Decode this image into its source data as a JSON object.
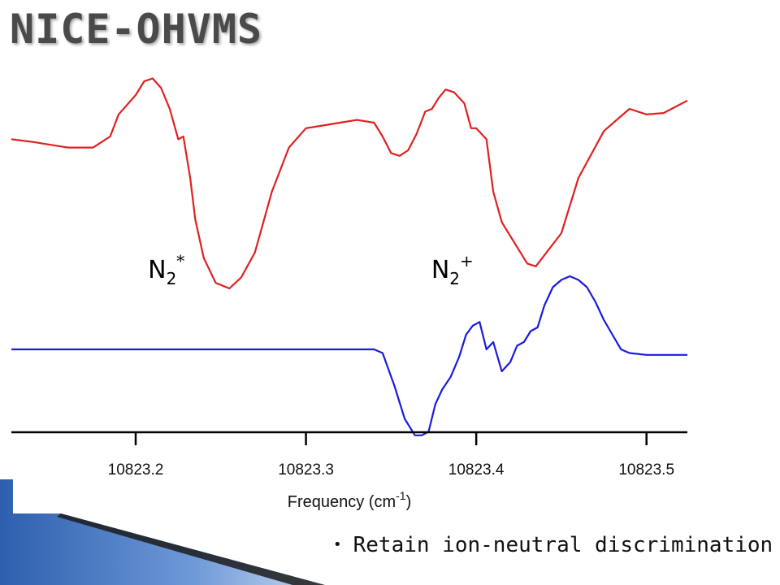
{
  "slide": {
    "title": "NICE-OHVMS",
    "bullets": [
      "Retain ion-neutral discrimination"
    ]
  },
  "colors": {
    "upper_trace": "#e02020",
    "lower_trace": "#1a1ae0",
    "accent_blue": "#3a72c8",
    "title_gray": "#4a4a4a"
  },
  "chart_data": {
    "type": "line",
    "xlabel": "Frequency (cm",
    "xlabel_superscript": "-1",
    "xlabel_suffix": ")",
    "ticks": [
      10823.2,
      10823.3,
      10823.4,
      10823.5
    ],
    "tick_labels": [
      "10823.2",
      "10823.3",
      "10823.4",
      "10823.5"
    ],
    "xlim": [
      10823.127,
      10823.524
    ],
    "annotations": [
      {
        "base": "N",
        "sub": "2",
        "sup": "*",
        "x": 10823.218
      },
      {
        "base": "N",
        "sub": "2",
        "sup": "+",
        "x": 10823.386
      }
    ],
    "series": [
      {
        "color": "#e02020",
        "x": [
          10823.127,
          10823.14,
          10823.16,
          10823.175,
          10823.185,
          10823.19,
          10823.2,
          10823.205,
          10823.21,
          10823.215,
          10823.22,
          10823.225,
          10823.228,
          10823.232,
          10823.235,
          10823.24,
          10823.247,
          10823.255,
          10823.262,
          10823.27,
          10823.28,
          10823.29,
          10823.3,
          10823.32,
          10823.33,
          10823.34,
          10823.345,
          10823.35,
          10823.355,
          10823.36,
          10823.365,
          10823.37,
          10823.374,
          10823.378,
          10823.382,
          10823.387,
          10823.393,
          10823.397,
          10823.4,
          10823.403,
          10823.406,
          10823.41,
          10823.415,
          10823.42,
          10823.425,
          10823.43,
          10823.435,
          10823.44,
          10823.45,
          10823.46,
          10823.475,
          10823.49,
          10823.5,
          10823.51,
          10823.524
        ],
        "y": [
          0.58,
          0.56,
          0.52,
          0.52,
          0.6,
          0.76,
          0.9,
          1.0,
          1.02,
          0.95,
          0.8,
          0.58,
          0.6,
          0.3,
          0.0,
          -0.28,
          -0.46,
          -0.5,
          -0.42,
          -0.24,
          0.2,
          0.52,
          0.66,
          0.7,
          0.72,
          0.7,
          0.6,
          0.48,
          0.46,
          0.5,
          0.62,
          0.78,
          0.8,
          0.88,
          0.94,
          0.92,
          0.84,
          0.66,
          0.66,
          0.62,
          0.58,
          0.2,
          -0.02,
          -0.12,
          -0.22,
          -0.32,
          -0.34,
          -0.26,
          -0.1,
          0.3,
          0.64,
          0.8,
          0.76,
          0.77,
          0.86
        ]
      },
      {
        "color": "#1a1ae0",
        "x": [
          10823.127,
          10823.15,
          10823.2,
          10823.25,
          10823.3,
          10823.34,
          10823.345,
          10823.352,
          10823.358,
          10823.364,
          10823.368,
          10823.372,
          10823.376,
          10823.38,
          10823.385,
          10823.39,
          10823.394,
          10823.398,
          10823.402,
          10823.406,
          10823.41,
          10823.415,
          10823.42,
          10823.424,
          10823.428,
          10823.432,
          10823.436,
          10823.44,
          10823.445,
          10823.45,
          10823.455,
          10823.46,
          10823.465,
          10823.47,
          10823.475,
          10823.48,
          10823.485,
          10823.49,
          10823.5,
          10823.51,
          10823.524
        ],
        "y": [
          0.6,
          0.6,
          0.6,
          0.6,
          0.6,
          0.6,
          0.58,
          0.4,
          0.22,
          0.13,
          0.13,
          0.15,
          0.3,
          0.38,
          0.45,
          0.56,
          0.68,
          0.73,
          0.75,
          0.6,
          0.64,
          0.48,
          0.53,
          0.62,
          0.64,
          0.7,
          0.72,
          0.84,
          0.94,
          0.98,
          1.0,
          0.98,
          0.94,
          0.86,
          0.76,
          0.68,
          0.6,
          0.58,
          0.57,
          0.57,
          0.57
        ]
      }
    ]
  }
}
